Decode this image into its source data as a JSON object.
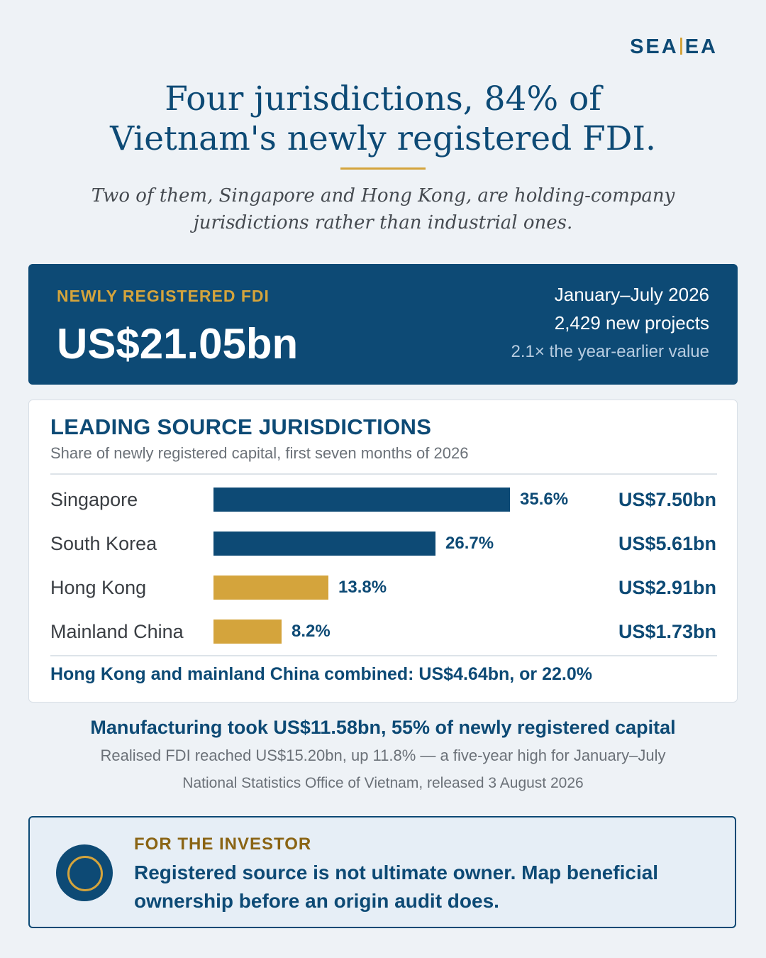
{
  "brand": {
    "left": "SEA",
    "right": "EA"
  },
  "headline": {
    "line1": "Four jurisdictions, 84% of",
    "line2": "Vietnam's newly registered FDI."
  },
  "subtitle": {
    "line1": "Two of them, Singapore and Hong Kong, are holding-company",
    "line2": "jurisdictions rather than industrial ones."
  },
  "hero": {
    "label": "NEWLY REGISTERED FDI",
    "value": "US$21.05bn",
    "period": "January–July 2026",
    "projects": "2,429 new projects",
    "growth": "2.1× the year-earlier value"
  },
  "chart_data": {
    "type": "bar",
    "orientation": "horizontal",
    "title": "LEADING SOURCE JURISDICTIONS",
    "subtitle": "Share of newly registered capital, first seven months of 2026",
    "xlim": [
      0,
      37.5
    ],
    "categories": [
      "Singapore",
      "South Korea",
      "Hong Kong",
      "Mainland China"
    ],
    "values": [
      35.6,
      26.7,
      13.8,
      8.2
    ],
    "value_labels": [
      "35.6%",
      "26.7%",
      "13.8%",
      "8.2%"
    ],
    "amounts": [
      "US$7.50bn",
      "US$5.61bn",
      "US$2.91bn",
      "US$1.73bn"
    ],
    "colors": [
      "#0d4a75",
      "#0d4a75",
      "#d4a43c",
      "#d4a43c"
    ],
    "footnote": "Hong Kong and mainland China combined: US$4.64bn, or 22.0%"
  },
  "summary": {
    "headline": "Manufacturing took US$11.58bn, 55% of newly registered capital",
    "detail": "Realised FDI reached US$15.20bn, up 11.8% — a five-year high for January–July",
    "source": "National Statistics Office of Vietnam, released 3 August 2026"
  },
  "investor": {
    "label": "FOR THE INVESTOR",
    "text": "Registered source is not ultimate owner. Map beneficial ownership before an origin audit does."
  },
  "colors": {
    "navy": "#0d4a75",
    "gold": "#d4a43c",
    "background": "#eef2f6"
  }
}
